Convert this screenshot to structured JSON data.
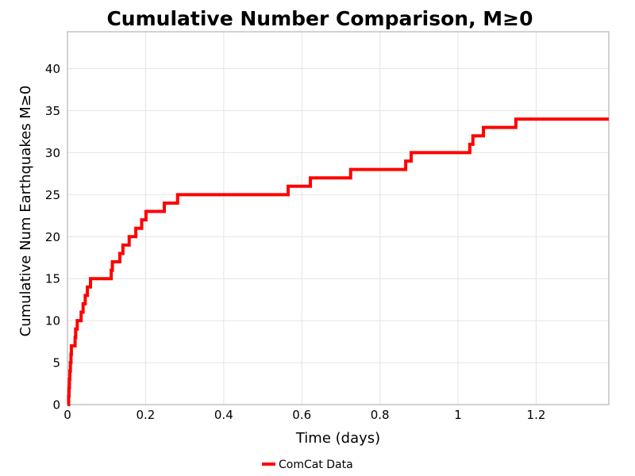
{
  "chart_data": {
    "type": "line",
    "line_style": "step-post",
    "title": "Cumulative Number Comparison, M≥0",
    "xlabel": "Time (days)",
    "ylabel": "Cumulative Num Earthquakes M≥0",
    "xlim": [
      0,
      1.386
    ],
    "ylim": [
      0,
      44.4
    ],
    "x_ticks": [
      0,
      0.2,
      0.4,
      0.6,
      0.8,
      1,
      1.2
    ],
    "x_tick_labels": [
      "0",
      "0.2",
      "0.4",
      "0.6",
      "0.8",
      "1",
      "1.2"
    ],
    "y_ticks": [
      0,
      5,
      10,
      15,
      20,
      25,
      30,
      35,
      40
    ],
    "grid": true,
    "legend_position": "bottom-center",
    "series": [
      {
        "name": "ComCat Data",
        "color": "#ff0000",
        "line_width": 4,
        "total_events": 34,
        "event_times_days": [
          0.003,
          0.004,
          0.005,
          0.006,
          0.0075,
          0.009,
          0.01,
          0.0195,
          0.021,
          0.025,
          0.035,
          0.04,
          0.0455,
          0.051,
          0.059,
          0.112,
          0.115,
          0.134,
          0.142,
          0.158,
          0.175,
          0.19,
          0.201,
          0.248,
          0.282,
          0.565,
          0.622,
          0.725,
          0.866,
          0.88,
          1.03,
          1.038,
          1.065,
          1.148
        ],
        "cumulative_counts": [
          1,
          2,
          3,
          4,
          5,
          6,
          7,
          8,
          9,
          10,
          11,
          12,
          13,
          14,
          15,
          16,
          17,
          18,
          19,
          20,
          21,
          22,
          23,
          24,
          25,
          26,
          27,
          28,
          29,
          30,
          31,
          32,
          33,
          34
        ],
        "end_time_days": 1.386
      }
    ]
  },
  "colors": {
    "line": "#ff0000",
    "grid": "#e4e4e4",
    "frame": "#b4b4b4",
    "text": "#000000",
    "background": "#ffffff"
  },
  "legend": {
    "items": [
      {
        "label": "ComCat Data",
        "color": "#ff0000"
      }
    ]
  }
}
